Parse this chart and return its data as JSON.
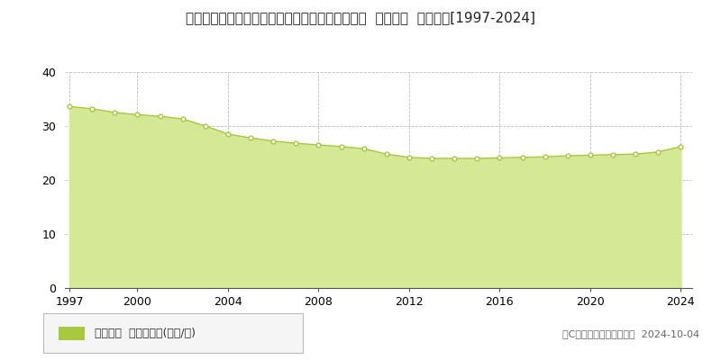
{
  "title": "愛知県知多郡阿久比町大字卯坂字向山下１番３９  基準地価  地価推移[1997-2024]",
  "years": [
    1997,
    1998,
    1999,
    2000,
    2001,
    2002,
    2003,
    2004,
    2005,
    2006,
    2007,
    2008,
    2009,
    2010,
    2011,
    2012,
    2013,
    2014,
    2015,
    2016,
    2017,
    2018,
    2019,
    2020,
    2021,
    2022,
    2023,
    2024
  ],
  "values": [
    33.6,
    33.2,
    32.5,
    32.1,
    31.8,
    31.3,
    30.0,
    28.5,
    27.8,
    27.2,
    26.8,
    26.5,
    26.2,
    25.8,
    24.8,
    24.2,
    24.0,
    24.0,
    24.0,
    24.1,
    24.2,
    24.3,
    24.5,
    24.6,
    24.7,
    24.8,
    25.2,
    26.2
  ],
  "line_color": "#a8c840",
  "fill_color": "#d4e896",
  "marker_face_color": "#ffffff",
  "marker_edge_color": "#a8c840",
  "grid_color": "#bbbbbb",
  "bg_color": "#ffffff",
  "plot_bg_color": "#ffffff",
  "ylim": [
    0,
    40
  ],
  "yticks": [
    0,
    10,
    20,
    30,
    40
  ],
  "xticks": [
    1997,
    2000,
    2004,
    2008,
    2012,
    2016,
    2020,
    2024
  ],
  "legend_label": "基準地価  平均坪単価(万円/坪)",
  "copyright_text": "（C）土地価格ドットコム  2024-10-04",
  "title_fontsize": 11,
  "tick_fontsize": 9,
  "legend_fontsize": 9,
  "copyright_fontsize": 8
}
